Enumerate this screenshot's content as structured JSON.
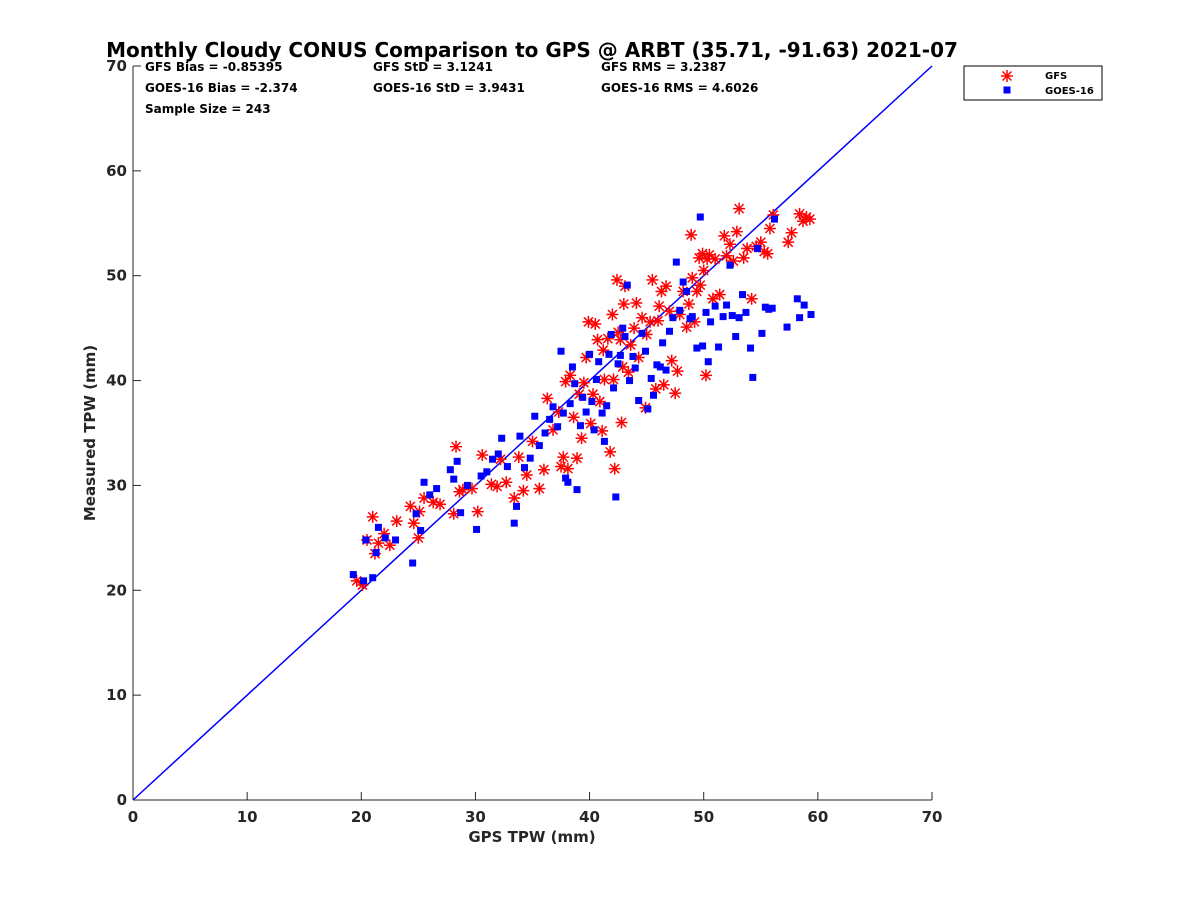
{
  "chart_data": {
    "type": "scatter",
    "title": "Monthly Cloudy CONUS Comparison to GPS @ ARBT (35.71, -91.63) 2021-07",
    "xlabel": "GPS TPW (mm)",
    "ylabel": "Measured TPW (mm)",
    "xlim": [
      0,
      70
    ],
    "ylim": [
      0,
      70
    ],
    "xticks": [
      0,
      10,
      20,
      30,
      40,
      50,
      60,
      70
    ],
    "yticks": [
      0,
      10,
      20,
      30,
      40,
      50,
      60,
      70
    ],
    "grid": false,
    "legend_position": "top-right",
    "stats": [
      "GFS Bias = -0.85395",
      "GFS StD = 3.1241",
      "GFS RMS = 3.2387",
      "GOES-16 Bias = -2.374",
      "GOES-16 StD = 3.9431",
      "GOES-16 RMS = 4.6026",
      "Sample Size = 243"
    ],
    "reference_line": {
      "x": [
        0,
        70
      ],
      "y": [
        0,
        70
      ]
    },
    "series": [
      {
        "name": "GFS",
        "marker": "asterisk",
        "color": "#ff0000",
        "points": [
          [
            19.6,
            20.9
          ],
          [
            20.1,
            20.5
          ],
          [
            20.5,
            24.8
          ],
          [
            21.0,
            27.0
          ],
          [
            21.2,
            23.5
          ],
          [
            21.5,
            24.5
          ],
          [
            22.0,
            25.4
          ],
          [
            22.5,
            24.3
          ],
          [
            23.1,
            26.6
          ],
          [
            24.3,
            28.0
          ],
          [
            24.6,
            26.4
          ],
          [
            25.0,
            25.0
          ],
          [
            25.1,
            27.5
          ],
          [
            25.5,
            28.8
          ],
          [
            26.3,
            28.4
          ],
          [
            26.9,
            28.2
          ],
          [
            28.1,
            27.3
          ],
          [
            28.3,
            33.7
          ],
          [
            28.6,
            29.4
          ],
          [
            28.9,
            29.6
          ],
          [
            29.7,
            29.7
          ],
          [
            30.2,
            27.5
          ],
          [
            30.6,
            32.9
          ],
          [
            31.4,
            30.1
          ],
          [
            31.9,
            29.9
          ],
          [
            32.2,
            32.5
          ],
          [
            32.7,
            30.3
          ],
          [
            33.4,
            28.8
          ],
          [
            33.8,
            32.7
          ],
          [
            34.2,
            29.5
          ],
          [
            34.5,
            31.0
          ],
          [
            35.0,
            34.2
          ],
          [
            35.6,
            29.7
          ],
          [
            36.0,
            31.5
          ],
          [
            36.3,
            38.3
          ],
          [
            36.8,
            35.3
          ],
          [
            37.3,
            37.0
          ],
          [
            37.5,
            31.8
          ],
          [
            37.7,
            32.7
          ],
          [
            37.9,
            39.9
          ],
          [
            38.1,
            31.6
          ],
          [
            38.3,
            40.5
          ],
          [
            38.6,
            36.5
          ],
          [
            38.9,
            32.6
          ],
          [
            39.1,
            38.7
          ],
          [
            39.3,
            34.5
          ],
          [
            39.5,
            39.8
          ],
          [
            39.7,
            42.2
          ],
          [
            39.9,
            45.6
          ],
          [
            40.1,
            35.9
          ],
          [
            40.3,
            38.7
          ],
          [
            40.5,
            45.4
          ],
          [
            40.7,
            43.9
          ],
          [
            40.9,
            38.0
          ],
          [
            41.1,
            35.2
          ],
          [
            41.2,
            42.9
          ],
          [
            41.3,
            40.1
          ],
          [
            41.6,
            44.0
          ],
          [
            41.8,
            33.2
          ],
          [
            42.0,
            46.3
          ],
          [
            42.1,
            40.1
          ],
          [
            42.2,
            31.6
          ],
          [
            42.4,
            49.6
          ],
          [
            42.5,
            44.6
          ],
          [
            42.7,
            43.9
          ],
          [
            42.8,
            36.0
          ],
          [
            42.9,
            41.3
          ],
          [
            43.0,
            47.3
          ],
          [
            43.1,
            49.0
          ],
          [
            43.4,
            40.8
          ],
          [
            43.6,
            43.4
          ],
          [
            43.9,
            45.0
          ],
          [
            44.1,
            47.4
          ],
          [
            44.3,
            42.2
          ],
          [
            44.6,
            46.0
          ],
          [
            44.9,
            37.4
          ],
          [
            45.0,
            44.4
          ],
          [
            45.3,
            45.6
          ],
          [
            45.5,
            49.6
          ],
          [
            45.8,
            39.2
          ],
          [
            46.0,
            45.7
          ],
          [
            46.1,
            47.1
          ],
          [
            46.3,
            48.5
          ],
          [
            46.5,
            39.6
          ],
          [
            46.7,
            49.0
          ],
          [
            47.0,
            46.6
          ],
          [
            47.2,
            41.9
          ],
          [
            47.5,
            38.8
          ],
          [
            47.7,
            40.9
          ],
          [
            47.9,
            46.3
          ],
          [
            48.2,
            48.5
          ],
          [
            48.5,
            45.1
          ],
          [
            48.7,
            47.3
          ],
          [
            48.9,
            53.9
          ],
          [
            49.0,
            49.8
          ],
          [
            49.2,
            45.6
          ],
          [
            49.4,
            48.5
          ],
          [
            49.6,
            51.7
          ],
          [
            49.7,
            49.1
          ],
          [
            49.9,
            52.1
          ],
          [
            50.0,
            50.5
          ],
          [
            50.2,
            40.5
          ],
          [
            50.3,
            51.6
          ],
          [
            50.5,
            52.0
          ],
          [
            50.8,
            47.8
          ],
          [
            51.0,
            51.6
          ],
          [
            51.4,
            48.2
          ],
          [
            51.8,
            53.8
          ],
          [
            52.0,
            51.9
          ],
          [
            52.3,
            53.0
          ],
          [
            52.6,
            51.4
          ],
          [
            52.9,
            54.2
          ],
          [
            53.1,
            56.4
          ],
          [
            53.5,
            51.7
          ],
          [
            53.8,
            52.6
          ],
          [
            54.2,
            47.8
          ],
          [
            54.6,
            52.8
          ],
          [
            55.0,
            53.2
          ],
          [
            55.3,
            52.3
          ],
          [
            55.6,
            52.1
          ],
          [
            55.8,
            54.5
          ],
          [
            56.1,
            55.8
          ],
          [
            57.4,
            53.2
          ],
          [
            57.7,
            54.1
          ],
          [
            58.4,
            55.9
          ],
          [
            58.7,
            55.2
          ],
          [
            59.0,
            55.6
          ],
          [
            59.3,
            55.4
          ]
        ]
      },
      {
        "name": "GOES-16",
        "marker": "square",
        "color": "#0000ff",
        "points": [
          [
            19.3,
            21.5
          ],
          [
            20.2,
            20.9
          ],
          [
            20.4,
            24.8
          ],
          [
            21.0,
            21.2
          ],
          [
            21.3,
            23.6
          ],
          [
            21.5,
            26.0
          ],
          [
            22.1,
            25.0
          ],
          [
            23.0,
            24.8
          ],
          [
            24.5,
            22.6
          ],
          [
            24.8,
            27.3
          ],
          [
            25.2,
            25.7
          ],
          [
            25.5,
            30.3
          ],
          [
            26.0,
            29.1
          ],
          [
            26.6,
            29.7
          ],
          [
            27.8,
            31.5
          ],
          [
            28.1,
            30.6
          ],
          [
            28.4,
            32.3
          ],
          [
            28.7,
            27.4
          ],
          [
            29.3,
            30.0
          ],
          [
            30.1,
            25.8
          ],
          [
            30.5,
            30.9
          ],
          [
            31.0,
            31.3
          ],
          [
            31.5,
            32.5
          ],
          [
            32.0,
            33.0
          ],
          [
            32.3,
            34.5
          ],
          [
            32.8,
            31.8
          ],
          [
            33.4,
            26.4
          ],
          [
            33.6,
            28.0
          ],
          [
            33.9,
            34.7
          ],
          [
            34.3,
            31.7
          ],
          [
            34.8,
            32.6
          ],
          [
            35.2,
            36.6
          ],
          [
            35.6,
            33.8
          ],
          [
            36.1,
            35.0
          ],
          [
            36.5,
            36.3
          ],
          [
            36.8,
            37.5
          ],
          [
            37.2,
            35.6
          ],
          [
            37.5,
            42.8
          ],
          [
            37.7,
            36.9
          ],
          [
            37.9,
            30.7
          ],
          [
            38.1,
            30.3
          ],
          [
            38.3,
            37.8
          ],
          [
            38.5,
            41.3
          ],
          [
            38.7,
            39.7
          ],
          [
            38.9,
            29.6
          ],
          [
            39.2,
            35.7
          ],
          [
            39.4,
            38.4
          ],
          [
            39.7,
            37.0
          ],
          [
            40.0,
            42.5
          ],
          [
            40.2,
            38.0
          ],
          [
            40.4,
            35.3
          ],
          [
            40.6,
            40.1
          ],
          [
            40.8,
            41.8
          ],
          [
            41.1,
            36.9
          ],
          [
            41.3,
            34.2
          ],
          [
            41.5,
            37.6
          ],
          [
            41.7,
            42.5
          ],
          [
            41.9,
            44.4
          ],
          [
            42.1,
            39.3
          ],
          [
            42.3,
            28.9
          ],
          [
            42.5,
            41.6
          ],
          [
            42.7,
            42.4
          ],
          [
            42.9,
            45.0
          ],
          [
            43.1,
            44.2
          ],
          [
            43.3,
            49.1
          ],
          [
            43.5,
            40.0
          ],
          [
            43.8,
            42.3
          ],
          [
            44.0,
            41.2
          ],
          [
            44.3,
            38.1
          ],
          [
            44.6,
            44.5
          ],
          [
            44.9,
            42.8
          ],
          [
            45.1,
            37.3
          ],
          [
            45.4,
            40.2
          ],
          [
            45.6,
            38.6
          ],
          [
            45.9,
            41.5
          ],
          [
            46.2,
            41.3
          ],
          [
            46.4,
            43.6
          ],
          [
            46.7,
            41.0
          ],
          [
            47.0,
            44.7
          ],
          [
            47.3,
            46.0
          ],
          [
            47.6,
            51.3
          ],
          [
            47.9,
            46.7
          ],
          [
            48.2,
            49.4
          ],
          [
            48.5,
            48.5
          ],
          [
            48.8,
            45.9
          ],
          [
            49.0,
            46.1
          ],
          [
            49.4,
            43.1
          ],
          [
            49.7,
            55.6
          ],
          [
            49.9,
            43.3
          ],
          [
            50.2,
            46.5
          ],
          [
            50.4,
            41.8
          ],
          [
            50.6,
            45.6
          ],
          [
            51.0,
            47.1
          ],
          [
            51.3,
            43.2
          ],
          [
            51.7,
            46.1
          ],
          [
            52.0,
            47.2
          ],
          [
            52.3,
            51.0
          ],
          [
            52.5,
            46.2
          ],
          [
            52.8,
            44.2
          ],
          [
            53.1,
            46.0
          ],
          [
            53.4,
            48.2
          ],
          [
            53.7,
            46.5
          ],
          [
            54.1,
            43.1
          ],
          [
            54.3,
            40.3
          ],
          [
            54.7,
            52.6
          ],
          [
            55.1,
            44.5
          ],
          [
            55.4,
            47.0
          ],
          [
            55.7,
            46.8
          ],
          [
            56.0,
            46.9
          ],
          [
            56.2,
            55.4
          ],
          [
            57.3,
            45.1
          ],
          [
            58.2,
            47.8
          ],
          [
            58.4,
            46.0
          ],
          [
            58.8,
            47.2
          ],
          [
            59.4,
            46.3
          ]
        ]
      }
    ]
  }
}
